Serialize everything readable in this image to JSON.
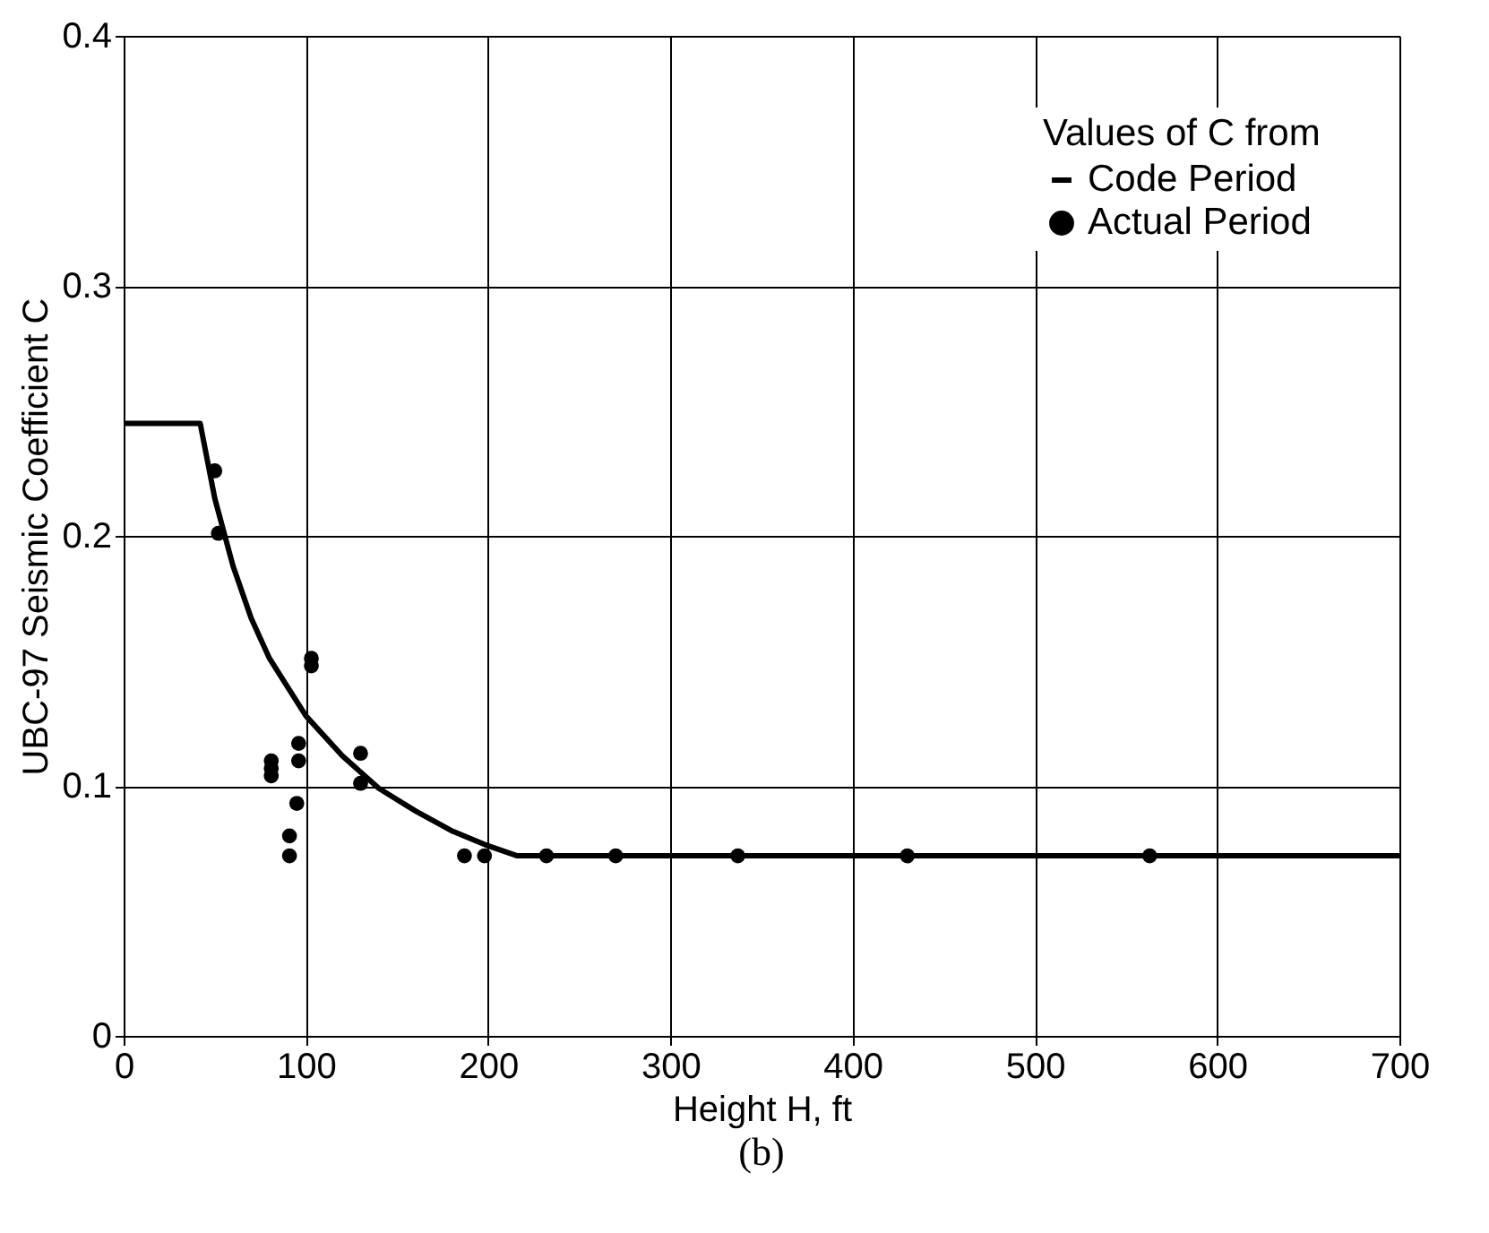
{
  "chart_data": {
    "type": "line",
    "xlabel": "Height H, ft",
    "ylabel": "UBC-97 Seismic Coefficient C",
    "legend_title": "Values of C from",
    "xlim": [
      0,
      700
    ],
    "xticks": [
      0,
      100,
      200,
      300,
      400,
      500,
      600,
      700
    ],
    "ylim": [
      0,
      0.4
    ],
    "yticks": [
      0,
      0.1,
      0.2,
      0.3,
      0.4
    ],
    "grid": true,
    "legend": "top right",
    "series": [
      {
        "name": "Code Period",
        "color": "#000000",
        "x": [
          0,
          42,
          50,
          60,
          70,
          80,
          100,
          120,
          140,
          160,
          180,
          200,
          216,
          700
        ],
        "values": [
          0.245,
          0.245,
          0.215,
          0.188,
          0.167,
          0.151,
          0.128,
          0.112,
          0.099,
          0.09,
          0.082,
          0.076,
          0.072,
          0.072
        ]
      },
      {
        "name": "Actual Period",
        "type": "scatter",
        "color": "#000000",
        "marker": "circle",
        "x": [
          50,
          52,
          81,
          81,
          81,
          91,
          91,
          95,
          96,
          96,
          103,
          103,
          130,
          130,
          187,
          198,
          232,
          270,
          337,
          430,
          563
        ],
        "values": [
          0.226,
          0.201,
          0.11,
          0.107,
          0.104,
          0.08,
          0.072,
          0.093,
          0.11,
          0.117,
          0.151,
          0.148,
          0.113,
          0.101,
          0.072,
          0.072,
          0.072,
          0.072,
          0.072,
          0.072,
          0.072
        ]
      }
    ],
    "annotations": [
      "(b)"
    ]
  }
}
